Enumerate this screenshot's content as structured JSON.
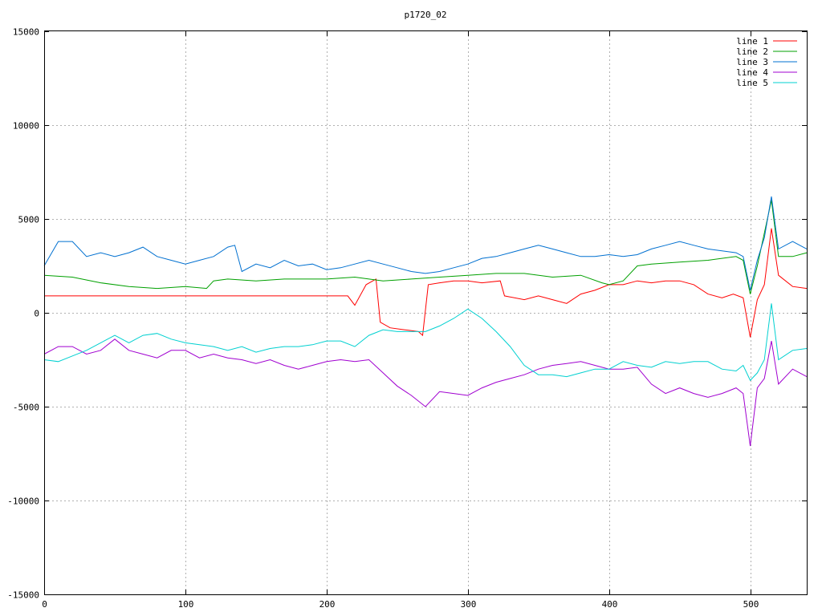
{
  "chart_data": {
    "type": "line",
    "title": "p1720_02",
    "xlabel": "",
    "ylabel": "",
    "xlim": [
      0,
      540
    ],
    "ylim": [
      -15000,
      15000
    ],
    "xticks": [
      0,
      100,
      200,
      300,
      400,
      500
    ],
    "yticks": [
      -15000,
      -10000,
      -5000,
      0,
      5000,
      10000,
      15000
    ],
    "grid": true,
    "legend_position": "top-right",
    "series": [
      {
        "name": "line 1",
        "color": "#ff0000",
        "points": [
          [
            0,
            900
          ],
          [
            50,
            900
          ],
          [
            100,
            900
          ],
          [
            150,
            900
          ],
          [
            200,
            900
          ],
          [
            215,
            900
          ],
          [
            220,
            400
          ],
          [
            228,
            1500
          ],
          [
            235,
            1800
          ],
          [
            238,
            -500
          ],
          [
            245,
            -800
          ],
          [
            255,
            -900
          ],
          [
            265,
            -1000
          ],
          [
            268,
            -1200
          ],
          [
            272,
            1500
          ],
          [
            280,
            1600
          ],
          [
            290,
            1700
          ],
          [
            300,
            1700
          ],
          [
            310,
            1600
          ],
          [
            323,
            1700
          ],
          [
            326,
            900
          ],
          [
            340,
            700
          ],
          [
            350,
            900
          ],
          [
            360,
            700
          ],
          [
            370,
            500
          ],
          [
            380,
            1000
          ],
          [
            390,
            1200
          ],
          [
            400,
            1500
          ],
          [
            410,
            1500
          ],
          [
            420,
            1700
          ],
          [
            430,
            1600
          ],
          [
            440,
            1700
          ],
          [
            450,
            1700
          ],
          [
            460,
            1500
          ],
          [
            470,
            1000
          ],
          [
            480,
            800
          ],
          [
            488,
            1000
          ],
          [
            495,
            800
          ],
          [
            500,
            -1300
          ],
          [
            505,
            700
          ],
          [
            510,
            1500
          ],
          [
            515,
            4500
          ],
          [
            520,
            2000
          ],
          [
            530,
            1400
          ],
          [
            540,
            1300
          ]
        ]
      },
      {
        "name": "line 2",
        "color": "#00a000",
        "points": [
          [
            0,
            2000
          ],
          [
            20,
            1900
          ],
          [
            40,
            1600
          ],
          [
            60,
            1400
          ],
          [
            80,
            1300
          ],
          [
            100,
            1400
          ],
          [
            115,
            1300
          ],
          [
            120,
            1700
          ],
          [
            130,
            1800
          ],
          [
            150,
            1700
          ],
          [
            170,
            1800
          ],
          [
            200,
            1800
          ],
          [
            220,
            1900
          ],
          [
            240,
            1700
          ],
          [
            260,
            1800
          ],
          [
            280,
            1900
          ],
          [
            300,
            2000
          ],
          [
            320,
            2100
          ],
          [
            340,
            2100
          ],
          [
            360,
            1900
          ],
          [
            380,
            2000
          ],
          [
            395,
            1600
          ],
          [
            400,
            1500
          ],
          [
            410,
            1700
          ],
          [
            420,
            2500
          ],
          [
            430,
            2600
          ],
          [
            450,
            2700
          ],
          [
            470,
            2800
          ],
          [
            490,
            3000
          ],
          [
            495,
            2800
          ],
          [
            500,
            1000
          ],
          [
            505,
            2500
          ],
          [
            515,
            6000
          ],
          [
            520,
            3000
          ],
          [
            530,
            3000
          ],
          [
            540,
            3200
          ]
        ]
      },
      {
        "name": "line 3",
        "color": "#0070d0",
        "points": [
          [
            0,
            2500
          ],
          [
            10,
            3800
          ],
          [
            20,
            3800
          ],
          [
            30,
            3000
          ],
          [
            40,
            3200
          ],
          [
            50,
            3000
          ],
          [
            60,
            3200
          ],
          [
            70,
            3500
          ],
          [
            80,
            3000
          ],
          [
            90,
            2800
          ],
          [
            100,
            2600
          ],
          [
            110,
            2800
          ],
          [
            120,
            3000
          ],
          [
            130,
            3500
          ],
          [
            135,
            3600
          ],
          [
            140,
            2200
          ],
          [
            150,
            2600
          ],
          [
            160,
            2400
          ],
          [
            170,
            2800
          ],
          [
            180,
            2500
          ],
          [
            190,
            2600
          ],
          [
            200,
            2300
          ],
          [
            210,
            2400
          ],
          [
            220,
            2600
          ],
          [
            230,
            2800
          ],
          [
            240,
            2600
          ],
          [
            250,
            2400
          ],
          [
            260,
            2200
          ],
          [
            270,
            2100
          ],
          [
            280,
            2200
          ],
          [
            290,
            2400
          ],
          [
            300,
            2600
          ],
          [
            310,
            2900
          ],
          [
            320,
            3000
          ],
          [
            330,
            3200
          ],
          [
            340,
            3400
          ],
          [
            350,
            3600
          ],
          [
            360,
            3400
          ],
          [
            370,
            3200
          ],
          [
            380,
            3000
          ],
          [
            390,
            3000
          ],
          [
            400,
            3100
          ],
          [
            410,
            3000
          ],
          [
            420,
            3100
          ],
          [
            430,
            3400
          ],
          [
            440,
            3600
          ],
          [
            450,
            3800
          ],
          [
            460,
            3600
          ],
          [
            470,
            3400
          ],
          [
            480,
            3300
          ],
          [
            490,
            3200
          ],
          [
            495,
            3000
          ],
          [
            500,
            1200
          ],
          [
            505,
            2800
          ],
          [
            510,
            4000
          ],
          [
            515,
            6200
          ],
          [
            520,
            3400
          ],
          [
            530,
            3800
          ],
          [
            540,
            3400
          ]
        ]
      },
      {
        "name": "line 4",
        "color": "#a000d0",
        "points": [
          [
            0,
            -2200
          ],
          [
            10,
            -1800
          ],
          [
            20,
            -1800
          ],
          [
            30,
            -2200
          ],
          [
            40,
            -2000
          ],
          [
            50,
            -1400
          ],
          [
            60,
            -2000
          ],
          [
            70,
            -2200
          ],
          [
            80,
            -2400
          ],
          [
            90,
            -2000
          ],
          [
            100,
            -2000
          ],
          [
            110,
            -2400
          ],
          [
            120,
            -2200
          ],
          [
            130,
            -2400
          ],
          [
            140,
            -2500
          ],
          [
            150,
            -2700
          ],
          [
            160,
            -2500
          ],
          [
            170,
            -2800
          ],
          [
            180,
            -3000
          ],
          [
            190,
            -2800
          ],
          [
            200,
            -2600
          ],
          [
            210,
            -2500
          ],
          [
            220,
            -2600
          ],
          [
            230,
            -2500
          ],
          [
            240,
            -3200
          ],
          [
            250,
            -3900
          ],
          [
            260,
            -4400
          ],
          [
            270,
            -5000
          ],
          [
            280,
            -4200
          ],
          [
            290,
            -4300
          ],
          [
            300,
            -4400
          ],
          [
            310,
            -4000
          ],
          [
            320,
            -3700
          ],
          [
            330,
            -3500
          ],
          [
            340,
            -3300
          ],
          [
            350,
            -3000
          ],
          [
            360,
            -2800
          ],
          [
            370,
            -2700
          ],
          [
            380,
            -2600
          ],
          [
            390,
            -2800
          ],
          [
            400,
            -3000
          ],
          [
            410,
            -3000
          ],
          [
            420,
            -2900
          ],
          [
            430,
            -3800
          ],
          [
            440,
            -4300
          ],
          [
            450,
            -4000
          ],
          [
            460,
            -4300
          ],
          [
            470,
            -4500
          ],
          [
            480,
            -4300
          ],
          [
            490,
            -4000
          ],
          [
            495,
            -4300
          ],
          [
            500,
            -7100
          ],
          [
            505,
            -4000
          ],
          [
            510,
            -3500
          ],
          [
            515,
            -1500
          ],
          [
            520,
            -3800
          ],
          [
            530,
            -3000
          ],
          [
            540,
            -3400
          ]
        ]
      },
      {
        "name": "line 5",
        "color": "#00d0d0",
        "points": [
          [
            0,
            -2500
          ],
          [
            10,
            -2600
          ],
          [
            20,
            -2300
          ],
          [
            30,
            -2000
          ],
          [
            40,
            -1600
          ],
          [
            50,
            -1200
          ],
          [
            60,
            -1600
          ],
          [
            70,
            -1200
          ],
          [
            80,
            -1100
          ],
          [
            90,
            -1400
          ],
          [
            100,
            -1600
          ],
          [
            110,
            -1700
          ],
          [
            120,
            -1800
          ],
          [
            130,
            -2000
          ],
          [
            140,
            -1800
          ],
          [
            150,
            -2100
          ],
          [
            160,
            -1900
          ],
          [
            170,
            -1800
          ],
          [
            180,
            -1800
          ],
          [
            190,
            -1700
          ],
          [
            200,
            -1500
          ],
          [
            210,
            -1500
          ],
          [
            220,
            -1800
          ],
          [
            230,
            -1200
          ],
          [
            240,
            -900
          ],
          [
            250,
            -1000
          ],
          [
            260,
            -1000
          ],
          [
            270,
            -1000
          ],
          [
            280,
            -700
          ],
          [
            290,
            -300
          ],
          [
            300,
            200
          ],
          [
            310,
            -300
          ],
          [
            320,
            -1000
          ],
          [
            330,
            -1800
          ],
          [
            340,
            -2800
          ],
          [
            350,
            -3300
          ],
          [
            360,
            -3300
          ],
          [
            370,
            -3400
          ],
          [
            380,
            -3200
          ],
          [
            390,
            -3000
          ],
          [
            400,
            -3000
          ],
          [
            410,
            -2600
          ],
          [
            420,
            -2800
          ],
          [
            430,
            -2900
          ],
          [
            440,
            -2600
          ],
          [
            450,
            -2700
          ],
          [
            460,
            -2600
          ],
          [
            470,
            -2600
          ],
          [
            480,
            -3000
          ],
          [
            490,
            -3100
          ],
          [
            495,
            -2800
          ],
          [
            500,
            -3600
          ],
          [
            505,
            -3200
          ],
          [
            510,
            -2500
          ],
          [
            515,
            500
          ],
          [
            520,
            -2500
          ],
          [
            530,
            -2000
          ],
          [
            540,
            -1900
          ]
        ]
      }
    ]
  }
}
